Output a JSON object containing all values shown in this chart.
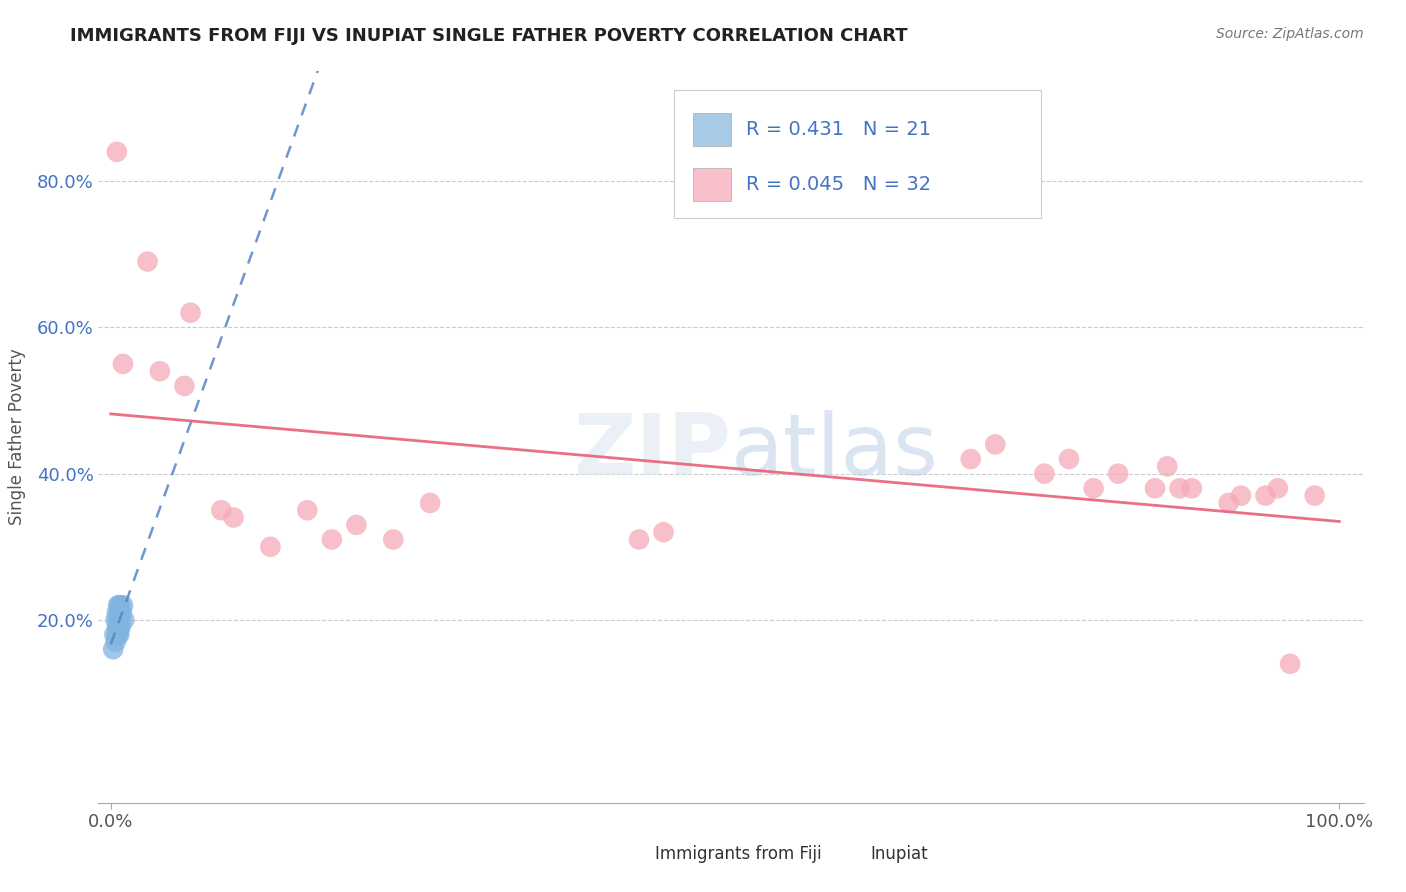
{
  "title": "IMMIGRANTS FROM FIJI VS INUPIAT SINGLE FATHER POVERTY CORRELATION CHART",
  "source": "Source: ZipAtlas.com",
  "ylabel": "Single Father Poverty",
  "background_color": "#ffffff",
  "grid_color": "#cccccc",
  "fiji_R": 0.431,
  "fiji_N": 21,
  "inupiat_R": 0.045,
  "inupiat_N": 32,
  "fiji_color": "#82b4e0",
  "inupiat_color": "#f5aab8",
  "fiji_line_color": "#5585c8",
  "inupiat_line_color": "#e8607a",
  "fiji_legend_color": "#a8cce8",
  "inupiat_legend_color": "#f9c0cb",
  "legend_text_color": "#4472c4",
  "legend_fiji_label": "Immigrants from Fiji",
  "legend_inupiat_label": "Inupiat",
  "fiji_x": [
    0.002,
    0.003,
    0.004,
    0.004,
    0.005,
    0.005,
    0.005,
    0.006,
    0.006,
    0.006,
    0.006,
    0.007,
    0.007,
    0.007,
    0.007,
    0.008,
    0.008,
    0.008,
    0.009,
    0.01,
    0.011
  ],
  "fiji_y": [
    0.16,
    0.18,
    0.17,
    0.2,
    0.18,
    0.19,
    0.21,
    0.18,
    0.19,
    0.2,
    0.22,
    0.18,
    0.19,
    0.21,
    0.22,
    0.19,
    0.2,
    0.22,
    0.21,
    0.22,
    0.2
  ],
  "inupiat_x": [
    0.005,
    0.01,
    0.03,
    0.04,
    0.06,
    0.065,
    0.09,
    0.1,
    0.13,
    0.16,
    0.18,
    0.2,
    0.23,
    0.26,
    0.43,
    0.45,
    0.7,
    0.72,
    0.76,
    0.78,
    0.8,
    0.82,
    0.85,
    0.86,
    0.87,
    0.88,
    0.91,
    0.92,
    0.94,
    0.95,
    0.96,
    0.98
  ],
  "inupiat_y": [
    0.84,
    0.55,
    0.69,
    0.54,
    0.52,
    0.62,
    0.35,
    0.34,
    0.3,
    0.35,
    0.31,
    0.33,
    0.31,
    0.36,
    0.31,
    0.32,
    0.42,
    0.44,
    0.4,
    0.42,
    0.38,
    0.4,
    0.38,
    0.41,
    0.38,
    0.38,
    0.36,
    0.37,
    0.37,
    0.38,
    0.14,
    0.37
  ],
  "fiji_trend_x": [
    0.0,
    1.0
  ],
  "inupiat_trend_start_x": 0.0,
  "inupiat_trend_end_x": 1.0,
  "xlim": [
    -0.01,
    1.02
  ],
  "ylim": [
    -0.05,
    0.95
  ],
  "x_ticks": [
    0.0,
    1.0
  ],
  "x_tick_labels": [
    "0.0%",
    "100.0%"
  ],
  "y_ticks": [
    0.2,
    0.4,
    0.6,
    0.8
  ],
  "y_tick_labels": [
    "20.0%",
    "40.0%",
    "60.0%",
    "80.0%"
  ]
}
